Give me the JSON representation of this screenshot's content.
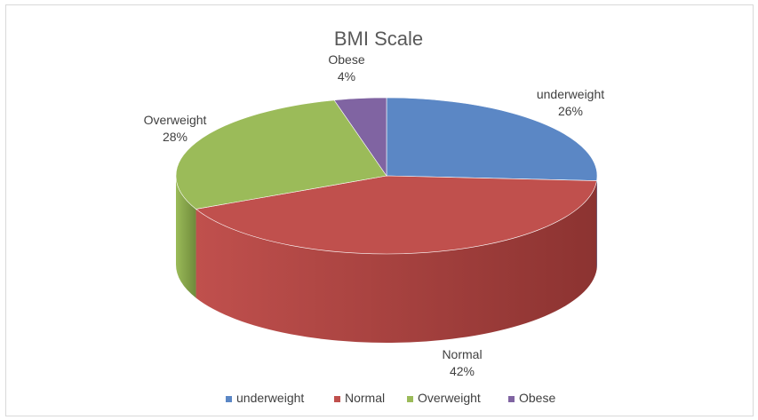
{
  "chart_data": {
    "type": "pie",
    "title": "BMI Scale",
    "three_d": true,
    "categories": [
      "underweight",
      "Normal",
      "Overweight",
      "Obese"
    ],
    "values": [
      26,
      42,
      28,
      4
    ],
    "value_labels": [
      "26%",
      "42%",
      "28%",
      "4%"
    ],
    "colors": [
      "#5b87c5",
      "#c0504d",
      "#9bbb59",
      "#8064a2"
    ],
    "side_colors": [
      "#3d5f92",
      "#8c3331",
      "#6f8a3b",
      "#5b4478"
    ],
    "legend_position": "bottom"
  }
}
